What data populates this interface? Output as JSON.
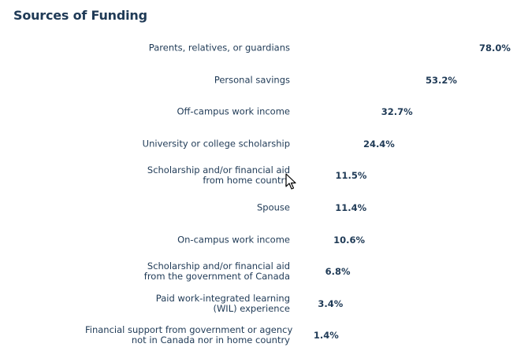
{
  "title": "Sources of Funding",
  "chart_data": {
    "type": "bar",
    "title": "Sources of Funding",
    "orientation": "horizontal",
    "value_suffix": "%",
    "categories": [
      [
        "Parents, relatives, or guardians"
      ],
      [
        "Personal savings"
      ],
      [
        "Off-campus work income"
      ],
      [
        "University or college scholarship"
      ],
      [
        "Scholarship and/or financial aid",
        "from home country"
      ],
      [
        "Spouse"
      ],
      [
        "On-campus work income"
      ],
      [
        "Scholarship and/or financial aid",
        "from the government of Canada"
      ],
      [
        "Paid work-integrated learning",
        "(WIL) experience"
      ],
      [
        "Financial support from government or agency",
        "not in Canada nor in home country"
      ]
    ],
    "values": [
      78.0,
      53.2,
      32.7,
      24.4,
      11.5,
      11.4,
      10.6,
      6.8,
      3.4,
      1.4
    ],
    "labels": [
      "78.0%",
      "53.2%",
      "32.7%",
      "24.4%",
      "11.5%",
      "11.4%",
      "10.6%",
      "6.8%",
      "3.4%",
      "1.4%"
    ],
    "xlim": [
      0,
      78.0
    ]
  },
  "cursor_icon": "mouse-pointer-icon"
}
